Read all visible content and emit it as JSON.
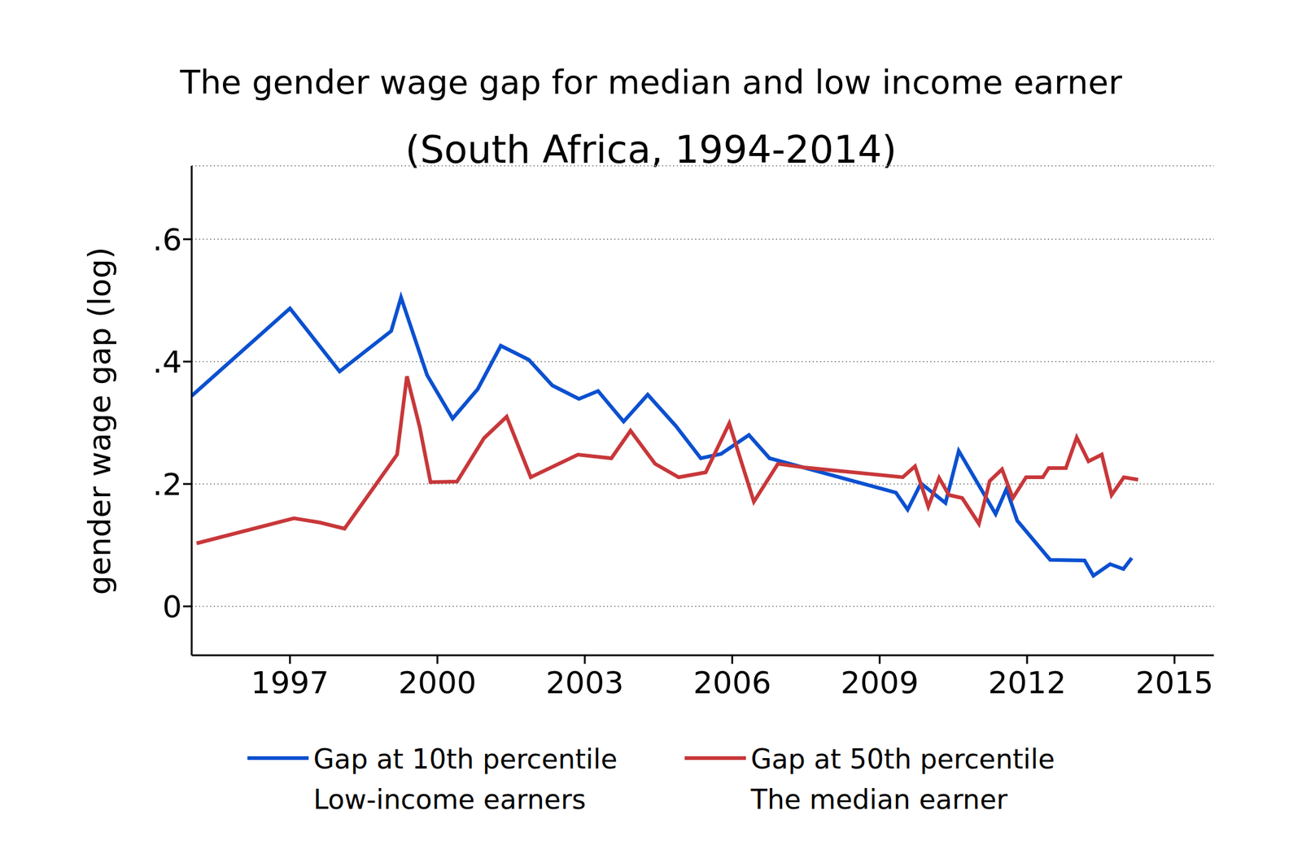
{
  "chart_data": {
    "type": "line",
    "title": "The gender wage gap for median and low income earner",
    "subtitle": "(South Africa, 1994-2014)",
    "y_label": "gender wage gap (log)",
    "xlim": [
      1995,
      2015.8
    ],
    "xticks": [
      1997,
      2000,
      2003,
      2006,
      2009,
      2012,
      2015
    ],
    "ylim": [
      -0.08,
      0.72
    ],
    "yticks": [
      0,
      {
        "value": 0.2,
        "label": ".2"
      },
      {
        "value": 0.4,
        "label": ".4"
      },
      {
        "value": 0.6,
        "label": ".6"
      }
    ],
    "grid": true,
    "legend": "bottom",
    "series": [
      {
        "name": "Gap at 10th percentile",
        "subtitle": "Low-income earners",
        "color": "#0b50d0",
        "x": [
          1995.0,
          1997.0,
          1998.01,
          1999.06,
          1999.26,
          1999.79,
          2000.31,
          2000.82,
          2001.29,
          2001.86,
          2002.34,
          2002.88,
          2003.27,
          2003.79,
          2004.28,
          2004.85,
          2005.36,
          2005.77,
          2006.34,
          2006.76,
          2009.33,
          2009.57,
          2009.84,
          2010.34,
          2010.61,
          2011.36,
          2011.58,
          2011.8,
          2012.47,
          2013.17,
          2013.35,
          2013.69,
          2013.96,
          2014.13
        ],
        "values": [
          0.344,
          0.487,
          0.384,
          0.45,
          0.505,
          0.378,
          0.307,
          0.355,
          0.426,
          0.403,
          0.361,
          0.339,
          0.352,
          0.302,
          0.346,
          0.295,
          0.242,
          0.249,
          0.28,
          0.242,
          0.186,
          0.158,
          0.201,
          0.169,
          0.254,
          0.151,
          0.192,
          0.14,
          0.076,
          0.075,
          0.05,
          0.069,
          0.061,
          0.079
        ]
      },
      {
        "name": "Gap at 50th percentile",
        "subtitle": "The median earner",
        "color": "#c8373a",
        "x": [
          1995.1,
          1997.08,
          1997.61,
          1998.11,
          1999.18,
          1999.38,
          1999.64,
          1999.86,
          2000.4,
          2000.95,
          2001.41,
          2001.9,
          2002.86,
          2003.54,
          2003.93,
          2004.43,
          2004.91,
          2005.46,
          2005.94,
          2006.44,
          2006.93,
          2007.47,
          2009.47,
          2009.72,
          2009.99,
          2010.21,
          2010.41,
          2010.68,
          2011.02,
          2011.24,
          2011.49,
          2011.71,
          2011.98,
          2012.32,
          2012.44,
          2012.79,
          2013.01,
          2013.25,
          2013.52,
          2013.72,
          2013.97,
          2014.26
        ],
        "values": [
          0.103,
          0.144,
          0.137,
          0.127,
          0.248,
          0.376,
          0.293,
          0.203,
          0.204,
          0.275,
          0.31,
          0.211,
          0.248,
          0.242,
          0.287,
          0.233,
          0.211,
          0.219,
          0.299,
          0.171,
          0.233,
          0.227,
          0.211,
          0.229,
          0.163,
          0.21,
          0.182,
          0.177,
          0.135,
          0.205,
          0.224,
          0.177,
          0.211,
          0.211,
          0.226,
          0.226,
          0.276,
          0.237,
          0.248,
          0.182,
          0.211,
          0.207
        ]
      }
    ]
  }
}
